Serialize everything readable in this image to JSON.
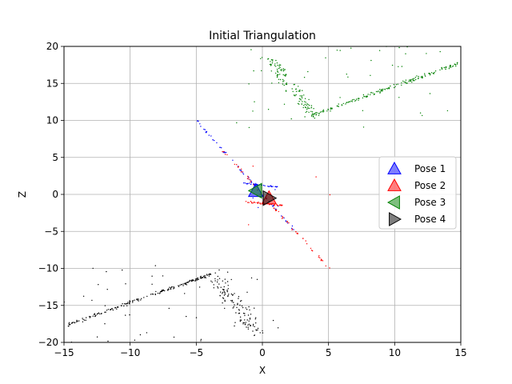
{
  "chart_data": {
    "type": "scatter",
    "title": "Initial Triangulation",
    "xlabel": "X",
    "ylabel": "Z",
    "xlim": [
      -15,
      15
    ],
    "ylim": [
      -20,
      20
    ],
    "xticks": [
      -15,
      -10,
      -5,
      0,
      5,
      10,
      15
    ],
    "yticks": [
      -20,
      -15,
      -10,
      -5,
      0,
      5,
      10,
      15,
      20
    ],
    "xtick_labels": [
      "−15",
      "−10",
      "−5",
      "0",
      "5",
      "10",
      "15"
    ],
    "ytick_labels": [
      "−20",
      "−15",
      "−10",
      "−5",
      "0",
      "5",
      "10",
      "15",
      "20"
    ],
    "grid": true,
    "legend_position": "center-right",
    "colors": {
      "blue": "#0000ff",
      "red": "#ff0000",
      "green": "#008000",
      "black": "#000000",
      "grid": "#b0b0b0"
    },
    "poses": [
      {
        "name": "Pose 1",
        "color": "#0000ff",
        "marker": "triangle-up",
        "x": -0.5,
        "z": 0.5
      },
      {
        "name": "Pose 2",
        "color": "#ff0000",
        "marker": "triangle-up",
        "x": 0.5,
        "z": -0.5
      },
      {
        "name": "Pose 3",
        "color": "#008000",
        "marker": "triangle-left",
        "x": -0.5,
        "z": 0.5
      },
      {
        "name": "Pose 4",
        "color": "#000000",
        "marker": "triangle-right",
        "x": 0.5,
        "z": -0.5
      }
    ],
    "point_clusters": [
      {
        "color": "#008000",
        "segments": [
          {
            "from": [
              3.8,
              10.7
            ],
            "to": [
              15,
              17.8
            ],
            "n": 180,
            "spread": 0.25
          },
          {
            "from": [
              0.5,
              18.5
            ],
            "to": [
              3.8,
              10.7
            ],
            "n": 120,
            "spread": 0.8
          }
        ],
        "scatter_region": [
          [
            -2,
            15
          ],
          [
            9,
            20
          ]
        ],
        "scatter_n": 45
      },
      {
        "color": "#000000",
        "segments": [
          {
            "from": [
              -3.8,
              -10.7
            ],
            "to": [
              -15,
              -17.8
            ],
            "n": 180,
            "spread": 0.25
          },
          {
            "from": [
              -0.5,
              -18.5
            ],
            "to": [
              -3.8,
              -10.7
            ],
            "n": 120,
            "spread": 0.8
          }
        ],
        "scatter_region": [
          [
            -15,
            2
          ],
          [
            -20,
            -9
          ]
        ],
        "scatter_n": 45
      },
      {
        "color": "#0000ff",
        "segments": [
          {
            "from": [
              -5,
              10
            ],
            "to": [
              2.5,
              -5
            ],
            "n": 60,
            "spread": 0.15
          },
          {
            "from": [
              -1.5,
              1.5
            ],
            "to": [
              1.2,
              1.0
            ],
            "n": 40,
            "spread": 0.15
          }
        ],
        "scatter_region": [
          [
            -2,
            2
          ],
          [
            -2,
            2
          ]
        ],
        "scatter_n": 5
      },
      {
        "color": "#ff0000",
        "segments": [
          {
            "from": [
              -3,
              6
            ],
            "to": [
              5,
              -10
            ],
            "n": 60,
            "spread": 0.2
          },
          {
            "from": [
              -1.2,
              -1.0
            ],
            "to": [
              1.5,
              -1.5
            ],
            "n": 40,
            "spread": 0.15
          }
        ],
        "scatter_region": [
          [
            -3,
            6
          ],
          [
            -12,
            6
          ]
        ],
        "scatter_n": 5
      }
    ]
  }
}
